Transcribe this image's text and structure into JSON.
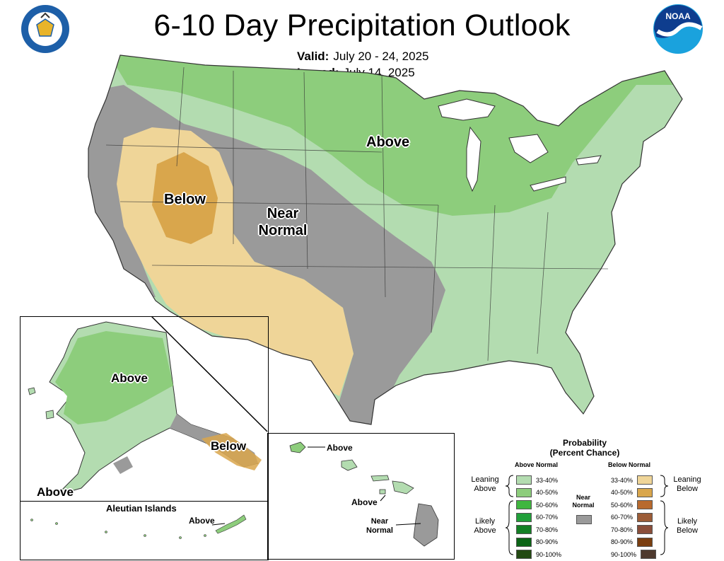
{
  "title": "6-10 Day Precipitation Outlook",
  "valid": {
    "label": "Valid:",
    "value": "July 20 - 24, 2025"
  },
  "issued": {
    "label": "Issued:",
    "value": "July 14, 2025"
  },
  "logos": {
    "left": "department-of-commerce-seal",
    "right": "noaa-logo"
  },
  "map_labels": {
    "conus_above": "Above",
    "conus_below": "Below",
    "conus_near_normal_1": "Near",
    "conus_near_normal_2": "Normal",
    "alaska_above": "Above",
    "alaska_above_south": "Above",
    "alaska_below": "Below",
    "aleutian_title": "Aleutian Islands",
    "aleutian_above": "Above",
    "hawaii_above_1": "Above",
    "hawaii_above_2": "Above",
    "hawaii_near_1": "Near",
    "hawaii_near_2": "Normal"
  },
  "legend": {
    "title_1": "Probability",
    "title_2": "(Percent Chance)",
    "above_head": "Above Normal",
    "below_head": "Below Normal",
    "near_1": "Near",
    "near_2": "Normal",
    "leaning_above_1": "Leaning",
    "leaning_above_2": "Above",
    "likely_above_1": "Likely",
    "likely_above_2": "Above",
    "leaning_below_1": "Leaning",
    "leaning_below_2": "Below",
    "likely_below_1": "Likely",
    "likely_below_2": "Below",
    "above_rows": [
      "33-40%",
      "40-50%",
      "50-60%",
      "60-70%",
      "70-80%",
      "80-90%",
      "90-100%"
    ],
    "below_rows": [
      "33-40%",
      "40-50%",
      "50-60%",
      "60-70%",
      "70-80%",
      "80-90%",
      "90-100%"
    ],
    "above_colors": [
      "#b3dcb0",
      "#8dcd7c",
      "#3fb63f",
      "#21a03a",
      "#138025",
      "#0b6416",
      "#234a12"
    ],
    "below_colors": [
      "#efd598",
      "#d9a64c",
      "#b86a2e",
      "#9c5c37",
      "#8a4e3a",
      "#7a3e10",
      "#4e3a2e"
    ],
    "near_color": "#9a9a9a"
  }
}
